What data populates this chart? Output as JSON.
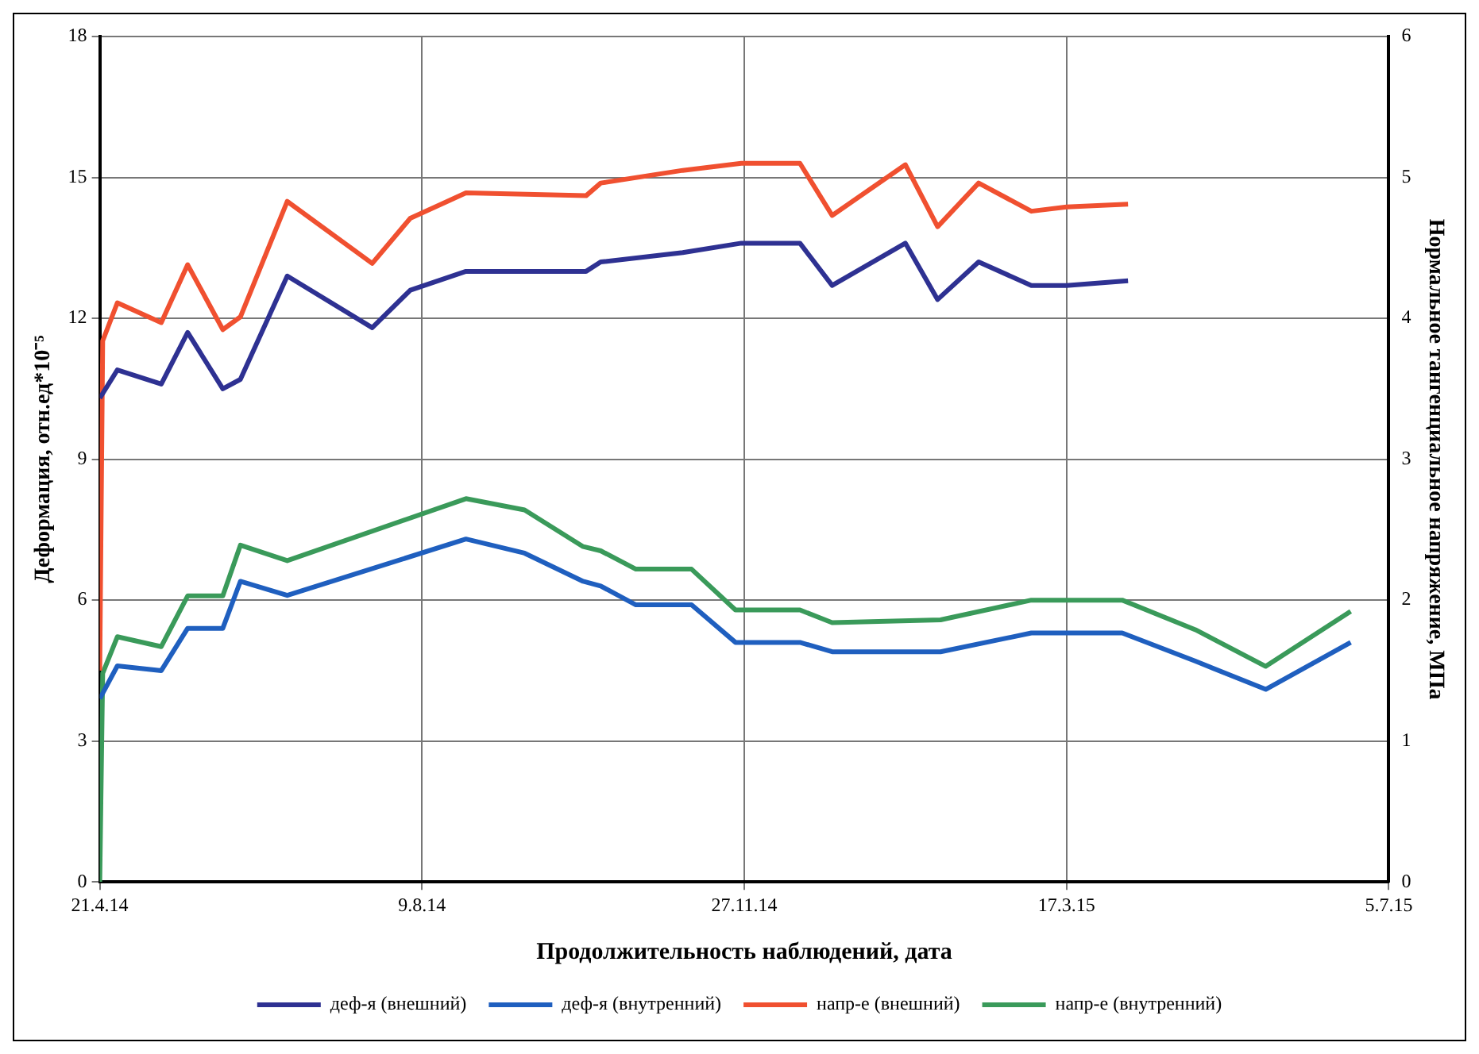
{
  "chart_data": {
    "type": "line",
    "xlabel": "Продолжительность наблюдений, дата",
    "ylabel": "Деформация, отн.ед*10⁻⁵",
    "y2label": "Нормальное тангенциальное напряжение, МПа",
    "xlim": [
      "2014-04-21",
      "2015-07-05"
    ],
    "xticks": [
      {
        "value": "2014-04-21",
        "label": "21.4.14"
      },
      {
        "value": "2014-08-09",
        "label": "9.8.14"
      },
      {
        "value": "2014-11-27",
        "label": "27.11.14"
      },
      {
        "value": "2015-03-17",
        "label": "17.3.15"
      },
      {
        "value": "2015-07-05",
        "label": "5.7.15"
      }
    ],
    "ylim": [
      0,
      18
    ],
    "yticks": [
      0,
      3,
      6,
      9,
      12,
      15,
      18
    ],
    "y2lim": [
      0,
      6
    ],
    "y2ticks": [
      0,
      1,
      2,
      3,
      4,
      5,
      6
    ],
    "grid": true,
    "legend": "bottom",
    "marker": "none",
    "line_style": "solid",
    "series": [
      {
        "name": "деф-я (внешний)",
        "color": "#2e3192",
        "x": [
          "2014-04-21",
          "2014-04-27",
          "2014-05-12",
          "2014-05-21",
          "2014-06-02",
          "2014-06-08",
          "2014-06-24",
          "2014-07-23",
          "2014-08-05",
          "2014-08-24",
          "2014-10-04",
          "2014-10-09",
          "2014-11-06",
          "2014-11-26",
          "2014-12-16",
          "2014-12-27",
          "2015-01-21",
          "2015-02-01",
          "2015-02-15",
          "2015-03-05",
          "2015-03-17",
          "2015-04-07"
        ],
        "values": [
          10.3,
          10.9,
          10.6,
          11.7,
          10.5,
          10.7,
          12.9,
          11.8,
          12.6,
          13.0,
          13.0,
          13.2,
          13.4,
          13.6,
          13.6,
          12.7,
          13.6,
          12.4,
          13.2,
          12.7,
          12.7,
          12.8
        ]
      },
      {
        "name": "деф-я (внутренний)",
        "color": "#1f5fbf",
        "x": [
          "2014-04-21",
          "2014-04-27",
          "2014-05-12",
          "2014-05-21",
          "2014-06-02",
          "2014-06-08",
          "2014-06-24",
          "2014-08-24",
          "2014-09-13",
          "2014-10-03",
          "2014-10-09",
          "2014-10-21",
          "2014-11-09",
          "2014-11-24",
          "2014-12-16",
          "2014-12-27",
          "2015-02-02",
          "2015-03-05",
          "2015-04-05",
          "2015-04-30",
          "2015-05-24",
          "2015-06-22"
        ],
        "values": [
          3.9,
          4.6,
          4.5,
          5.4,
          5.4,
          6.4,
          6.1,
          7.3,
          7.0,
          6.4,
          6.3,
          5.9,
          5.9,
          5.1,
          5.1,
          4.9,
          4.9,
          5.3,
          5.3,
          4.7,
          4.1,
          5.1
        ]
      },
      {
        "name": "напр-е (внешний)",
        "color": "#f05030",
        "axis": "y2",
        "x": [
          "2014-04-21",
          "2014-04-22",
          "2014-04-27",
          "2014-05-12",
          "2014-05-21",
          "2014-06-02",
          "2014-06-08",
          "2014-06-24",
          "2014-07-23",
          "2014-08-05",
          "2014-08-24",
          "2014-10-04",
          "2014-10-09",
          "2014-11-06",
          "2014-11-26",
          "2014-12-16",
          "2014-12-27",
          "2015-01-21",
          "2015-02-01",
          "2015-02-15",
          "2015-03-05",
          "2015-03-17",
          "2015-04-07"
        ],
        "values": [
          1.5,
          3.84,
          4.11,
          3.97,
          4.38,
          3.92,
          4.01,
          4.83,
          4.39,
          4.71,
          4.89,
          4.87,
          4.96,
          5.05,
          5.1,
          5.1,
          4.73,
          5.09,
          4.65,
          4.96,
          4.76,
          4.79,
          4.81
        ]
      },
      {
        "name": "напр-е (внутренний)",
        "color": "#3a9a5a",
        "axis": "y2",
        "x": [
          "2014-04-21",
          "2014-04-22",
          "2014-04-27",
          "2014-05-12",
          "2014-05-21",
          "2014-06-02",
          "2014-06-08",
          "2014-06-24",
          "2014-08-24",
          "2014-09-13",
          "2014-10-03",
          "2014-10-09",
          "2014-10-21",
          "2014-11-09",
          "2014-11-24",
          "2014-12-16",
          "2014-12-27",
          "2015-02-02",
          "2015-03-05",
          "2015-04-05",
          "2015-04-30",
          "2015-05-24",
          "2015-06-22"
        ],
        "values": [
          0,
          1.48,
          1.74,
          1.67,
          2.03,
          2.03,
          2.39,
          2.28,
          2.72,
          2.64,
          2.38,
          2.35,
          2.22,
          2.22,
          1.93,
          1.93,
          1.84,
          1.86,
          2.0,
          2.0,
          1.79,
          1.53,
          1.92
        ]
      }
    ]
  }
}
